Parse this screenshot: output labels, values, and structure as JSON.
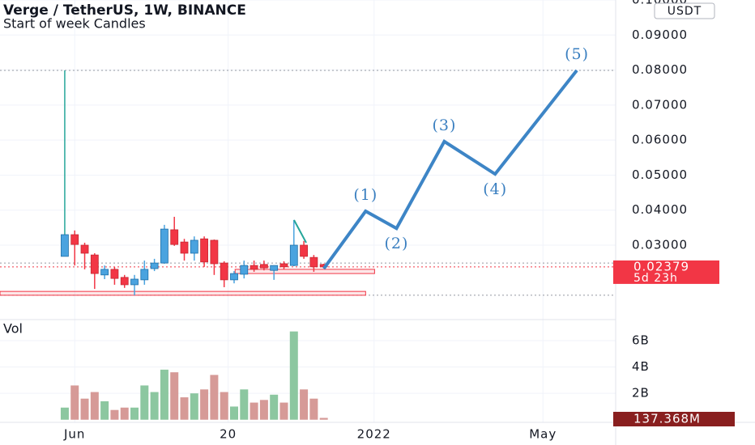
{
  "chart_data": {
    "type": "candlestick",
    "title": "Verge / TetherUS, 1W, BINANCE",
    "subtitle": "Start of week Candles",
    "currency": "USDT",
    "up_color": "#4aa3df",
    "down_color": "#f23645",
    "open": [
      0.0268,
      0.033,
      0.03,
      0.0272,
      0.0215,
      0.0231,
      0.0208,
      0.0187,
      0.0201,
      0.0233,
      0.0249,
      0.0344,
      0.0309,
      0.0277,
      0.0318,
      0.0314,
      0.0249,
      0.0201,
      0.0217,
      0.0242,
      0.0245,
      0.0228,
      0.0247,
      0.0242,
      0.03,
      0.0265,
      0.0245
    ],
    "high": [
      0.0799,
      0.0342,
      0.0307,
      0.0277,
      0.0242,
      0.0238,
      0.0215,
      0.0215,
      0.0256,
      0.0261,
      0.0358,
      0.0381,
      0.0318,
      0.0325,
      0.0325,
      0.0316,
      0.0254,
      0.0226,
      0.0256,
      0.0256,
      0.0256,
      0.0233,
      0.0254,
      0.0372,
      0.0312,
      0.0272,
      0.0247
    ],
    "low": [
      0.0268,
      0.0242,
      0.0231,
      0.0175,
      0.0203,
      0.0187,
      0.0178,
      0.0157,
      0.0187,
      0.0226,
      0.0247,
      0.0298,
      0.0256,
      0.0256,
      0.0238,
      0.0215,
      0.018,
      0.0191,
      0.0205,
      0.0224,
      0.0228,
      0.0201,
      0.0231,
      0.024,
      0.0261,
      0.0224,
      0.0238
    ],
    "close": [
      0.033,
      0.0302,
      0.0277,
      0.0219,
      0.0231,
      0.0205,
      0.0187,
      0.0203,
      0.0231,
      0.0249,
      0.0346,
      0.0302,
      0.0277,
      0.0314,
      0.0252,
      0.0247,
      0.0201,
      0.0219,
      0.0242,
      0.0231,
      0.0235,
      0.0242,
      0.0238,
      0.03,
      0.0268,
      0.0238,
      0.02379
    ],
    "xlim": [
      -6.5,
      55.3
    ],
    "xticks": [
      {
        "value": 1,
        "label": "Jun"
      },
      {
        "value": 16.4,
        "label": "20"
      },
      {
        "value": 31.05,
        "label": "2022"
      },
      {
        "value": 48,
        "label": "May"
      }
    ],
    "ylim": [
      0.00875,
      0.1
    ],
    "yticks": [
      {
        "value": 0.03,
        "label": "0.03000"
      },
      {
        "value": 0.04,
        "label": "0.04000"
      },
      {
        "value": 0.05,
        "label": "0.05000"
      },
      {
        "value": 0.06,
        "label": "0.06000"
      },
      {
        "value": 0.07,
        "label": "0.07000"
      },
      {
        "value": 0.08,
        "label": "0.08000"
      },
      {
        "value": 0.09,
        "label": "0.09000"
      },
      {
        "value": 0.1,
        "label": "0.10000"
      }
    ],
    "grid": true,
    "last_price": 0.02379,
    "countdown": "5d 23h",
    "levels": [
      0.0799,
      0.0249,
      0.0157
    ],
    "zones": [
      {
        "xlim": [
          -6.5,
          30.2
        ],
        "ylim": [
          0.0157,
          0.0168
        ]
      },
      {
        "xlim": [
          17.1,
          31.1
        ],
        "ylim": [
          0.0219,
          0.0231
        ]
      }
    ],
    "waves": {
      "x": [
        26,
        30.2,
        33.3,
        38.1,
        43.2,
        51.4
      ],
      "y": [
        0.0233,
        0.0397,
        0.0348,
        0.0596,
        0.0503,
        0.0799
      ],
      "labels": [
        null,
        "(1)",
        "(2)",
        "(3)",
        "(4)",
        "(5)"
      ],
      "color": "#3d85c6"
    },
    "volume": {
      "title": "Vol",
      "values": [
        0.92,
        2.6,
        1.6,
        2.1,
        1.4,
        0.74,
        0.92,
        0.92,
        2.6,
        2.1,
        3.8,
        3.6,
        1.7,
        2.0,
        2.3,
        3.4,
        2.1,
        1.0,
        2.3,
        1.3,
        1.5,
        1.9,
        1.3,
        6.7,
        2.3,
        1.6,
        0.137368
      ],
      "ylim": [
        -0.2,
        7.6
      ],
      "yticks": [
        {
          "value": 2,
          "label": "2B"
        },
        {
          "value": 4,
          "label": "4B"
        },
        {
          "value": 6,
          "label": "6B"
        }
      ],
      "up_color": "#8cc7a0",
      "down_color": "#d69a97",
      "last": {
        "value": 0.137368,
        "label": "137.368M"
      }
    }
  }
}
